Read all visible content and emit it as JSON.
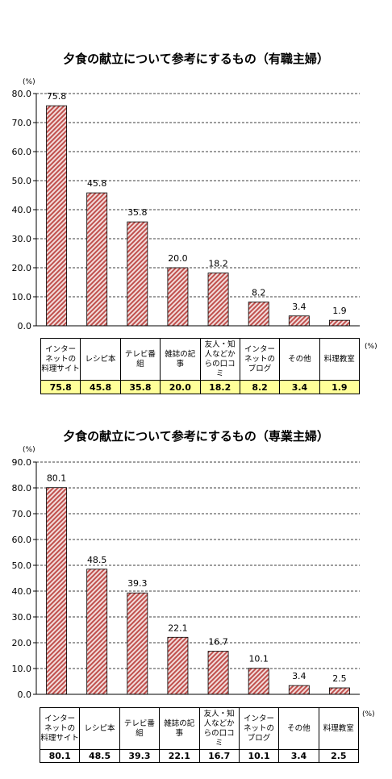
{
  "chart_data": [
    {
      "type": "bar",
      "title": "夕食の献立について参考にするもの（有職主婦）",
      "yunit": "(%)",
      "table_unit": "(%)",
      "categories": [
        "インターネットの料理サイト",
        "レシピ本",
        "テレビ番組",
        "雑誌の記事",
        "友人・知人などからの口コミ",
        "インターネットのブログ",
        "その他",
        "料理教室"
      ],
      "category_lines": [
        [
          "インター",
          "ネットの",
          "料理サイト"
        ],
        [
          "レシピ本"
        ],
        [
          "テレビ番",
          "組"
        ],
        [
          "雑誌の記",
          "事"
        ],
        [
          "友人・知",
          "人などか",
          "らの口コ",
          "ミ"
        ],
        [
          "インター",
          "ネットの",
          "ブログ"
        ],
        [
          "その他"
        ],
        [
          "料理教室"
        ]
      ],
      "values": [
        75.8,
        45.8,
        35.8,
        20.0,
        18.2,
        8.2,
        3.4,
        1.9
      ],
      "value_labels": [
        "75.8",
        "45.8",
        "35.8",
        "20.0",
        "18.2",
        "8.2",
        "3.4",
        "1.9"
      ],
      "ylim": [
        0,
        80
      ],
      "yticks": [
        "0.0",
        "10.0",
        "20.0",
        "30.0",
        "40.0",
        "50.0",
        "60.0",
        "70.0",
        "80.0"
      ],
      "bar_color": "#c0504d",
      "hatch_bg": "#f2dcdb"
    },
    {
      "type": "bar",
      "title": "夕食の献立について参考にするもの（専業主婦）",
      "yunit": "(%)",
      "table_unit": "(%)",
      "categories": [
        "インターネットの料理サイト",
        "レシピ本",
        "テレビ番組",
        "雑誌の記事",
        "友人・知人などからの口コミ",
        "インターネットのブログ",
        "その他",
        "料理教室"
      ],
      "category_lines": [
        [
          "インター",
          "ネットの",
          "料理サイト"
        ],
        [
          "レシピ本"
        ],
        [
          "テレビ番",
          "組"
        ],
        [
          "雑誌の記",
          "事"
        ],
        [
          "友人・知",
          "人などか",
          "らの口コ",
          "ミ"
        ],
        [
          "インター",
          "ネットの",
          "ブログ"
        ],
        [
          "その他"
        ],
        [
          "料理教室"
        ]
      ],
      "values": [
        80.1,
        48.5,
        39.3,
        22.1,
        16.7,
        10.1,
        3.4,
        2.5
      ],
      "value_labels": [
        "80.1",
        "48.5",
        "39.3",
        "22.1",
        "16.7",
        "10.1",
        "3.4",
        "2.5"
      ],
      "ylim": [
        0,
        90
      ],
      "yticks": [
        "0.0",
        "10.0",
        "20.0",
        "30.0",
        "40.0",
        "50.0",
        "60.0",
        "70.0",
        "80.0",
        "90.0"
      ],
      "bar_color": "#c0504d",
      "hatch_bg": "#f2dcdb"
    }
  ]
}
